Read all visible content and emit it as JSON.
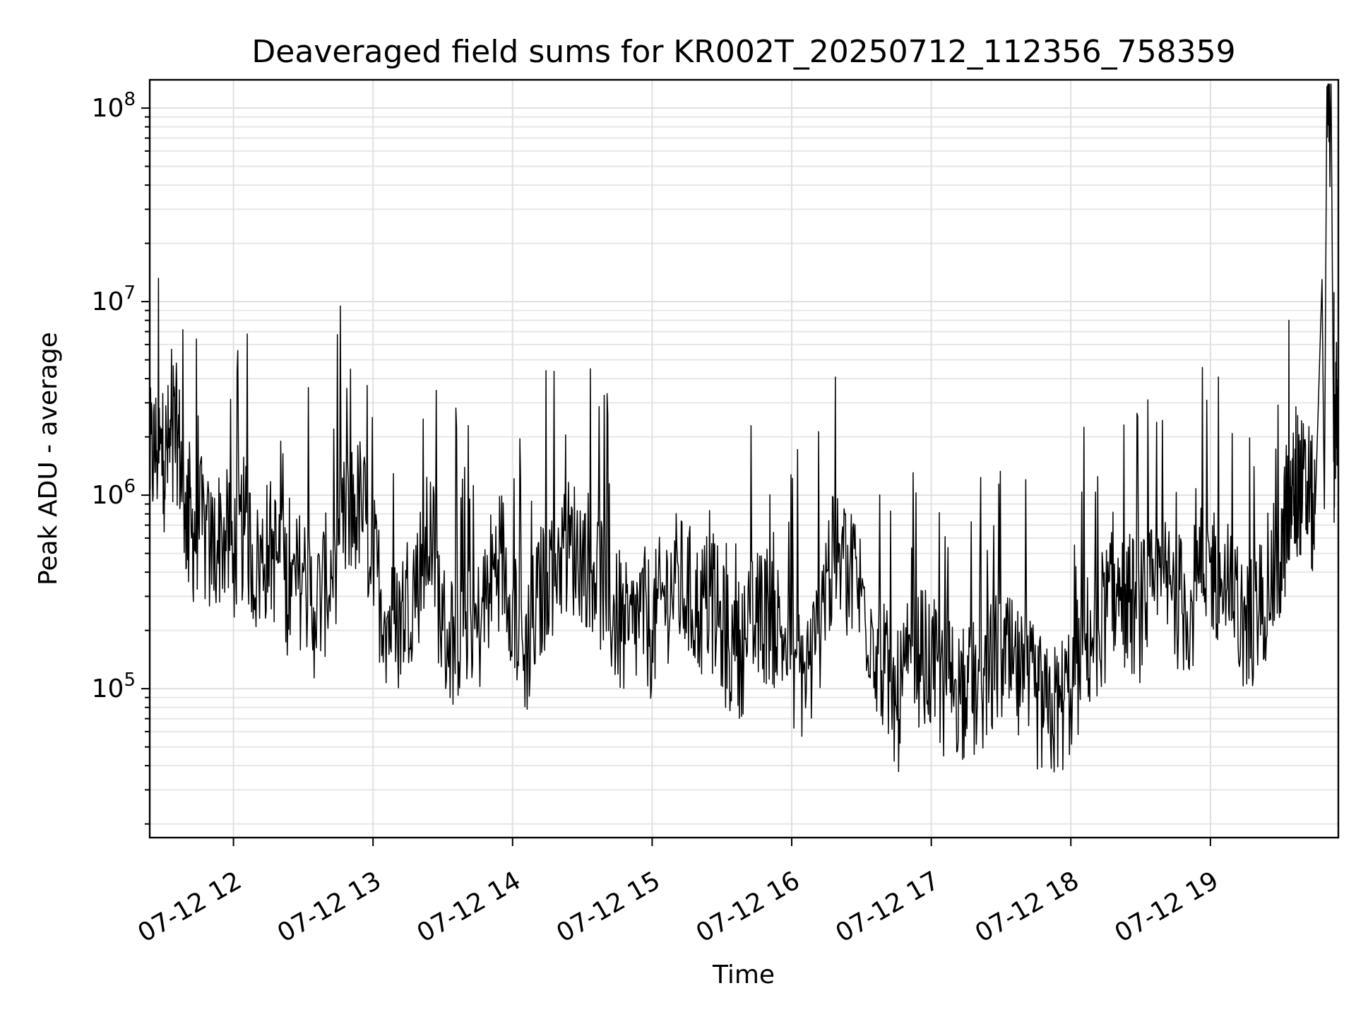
{
  "chart_data": {
    "type": "line",
    "title": "Deaveraged field sums for KR002T_20250712_112356_758359",
    "xlabel": "Time",
    "ylabel": "Peak ADU - average",
    "yscale": "log",
    "ylim": [
      17000,
      140000000
    ],
    "xlim": [
      "2025-07-12 11:24",
      "2025-07-12 19:55"
    ],
    "grid": true,
    "line_color": "#000000",
    "x_ticks": [
      {
        "label": "07-12 12",
        "time": "2025-07-12 12:00"
      },
      {
        "label": "07-12 13",
        "time": "2025-07-12 13:00"
      },
      {
        "label": "07-12 14",
        "time": "2025-07-12 14:00"
      },
      {
        "label": "07-12 15",
        "time": "2025-07-12 15:00"
      },
      {
        "label": "07-12 16",
        "time": "2025-07-12 16:00"
      },
      {
        "label": "07-12 17",
        "time": "2025-07-12 17:00"
      },
      {
        "label": "07-12 18",
        "time": "2025-07-12 18:00"
      },
      {
        "label": "07-12 19",
        "time": "2025-07-12 19:00"
      }
    ],
    "y_ticks": [
      {
        "base": "10",
        "exp": "5",
        "value": 100000
      },
      {
        "base": "10",
        "exp": "6",
        "value": 1000000
      },
      {
        "base": "10",
        "exp": "7",
        "value": 10000000
      },
      {
        "base": "10",
        "exp": "8",
        "value": 100000000
      }
    ],
    "series": [
      {
        "name": "",
        "points": [
          [
            "2025-07-12 11:24",
            1500000
          ],
          [
            "2025-07-12 11:27",
            1700000
          ],
          [
            "2025-07-12 11:30",
            1500000
          ],
          [
            "2025-07-12 11:33",
            1800000
          ],
          [
            "2025-07-12 11:36",
            2100000
          ],
          [
            "2025-07-12 11:39",
            900000
          ],
          [
            "2025-07-12 11:42",
            600000
          ],
          [
            "2025-07-12 11:45",
            750000
          ],
          [
            "2025-07-12 11:50",
            500000
          ],
          [
            "2025-07-12 11:55",
            650000
          ],
          [
            "2025-07-12 12:00",
            500000
          ],
          [
            "2025-07-12 12:05",
            700000
          ],
          [
            "2025-07-12 12:10",
            400000
          ],
          [
            "2025-07-12 12:15",
            550000
          ],
          [
            "2025-07-12 12:20",
            450000
          ],
          [
            "2025-07-12 12:25",
            300000
          ],
          [
            "2025-07-12 12:30",
            400000
          ],
          [
            "2025-07-12 12:35",
            250000
          ],
          [
            "2025-07-12 12:40",
            350000
          ],
          [
            "2025-07-12 12:45",
            550000
          ],
          [
            "2025-07-12 12:50",
            800000
          ],
          [
            "2025-07-12 12:55",
            900000
          ],
          [
            "2025-07-12 13:00",
            450000
          ],
          [
            "2025-07-12 13:05",
            250000
          ],
          [
            "2025-07-12 13:10",
            200000
          ],
          [
            "2025-07-12 13:15",
            300000
          ],
          [
            "2025-07-12 13:20",
            400000
          ],
          [
            "2025-07-12 13:25",
            650000
          ],
          [
            "2025-07-12 13:30",
            200000
          ],
          [
            "2025-07-12 13:35",
            180000
          ],
          [
            "2025-07-12 13:40",
            250000
          ],
          [
            "2025-07-12 13:45",
            200000
          ],
          [
            "2025-07-12 13:50",
            350000
          ],
          [
            "2025-07-12 13:55",
            500000
          ],
          [
            "2025-07-12 14:00",
            300000
          ],
          [
            "2025-07-12 14:05",
            150000
          ],
          [
            "2025-07-12 14:10",
            250000
          ],
          [
            "2025-07-12 14:15",
            400000
          ],
          [
            "2025-07-12 14:20",
            500000
          ],
          [
            "2025-07-12 14:25",
            550000
          ],
          [
            "2025-07-12 14:30",
            500000
          ],
          [
            "2025-07-12 14:35",
            450000
          ],
          [
            "2025-07-12 14:40",
            300000
          ],
          [
            "2025-07-12 14:45",
            220000
          ],
          [
            "2025-07-12 14:50",
            180000
          ],
          [
            "2025-07-12 14:55",
            250000
          ],
          [
            "2025-07-12 15:00",
            200000
          ],
          [
            "2025-07-12 15:05",
            300000
          ],
          [
            "2025-07-12 15:10",
            350000
          ],
          [
            "2025-07-12 15:15",
            320000
          ],
          [
            "2025-07-12 15:20",
            250000
          ],
          [
            "2025-07-12 15:25",
            300000
          ],
          [
            "2025-07-12 15:30",
            200000
          ],
          [
            "2025-07-12 15:35",
            150000
          ],
          [
            "2025-07-12 15:40",
            180000
          ],
          [
            "2025-07-12 15:45",
            220000
          ],
          [
            "2025-07-12 15:50",
            250000
          ],
          [
            "2025-07-12 15:55",
            200000
          ],
          [
            "2025-07-12 16:00",
            150000
          ],
          [
            "2025-07-12 16:05",
            120000
          ],
          [
            "2025-07-12 16:10",
            150000
          ],
          [
            "2025-07-12 16:15",
            400000
          ],
          [
            "2025-07-12 16:20",
            450000
          ],
          [
            "2025-07-12 16:25",
            420000
          ],
          [
            "2025-07-12 16:30",
            300000
          ],
          [
            "2025-07-12 16:35",
            200000
          ],
          [
            "2025-07-12 16:40",
            120000
          ],
          [
            "2025-07-12 16:45",
            80000
          ],
          [
            "2025-07-12 16:50",
            120000
          ],
          [
            "2025-07-12 16:55",
            150000
          ],
          [
            "2025-07-12 17:00",
            130000
          ],
          [
            "2025-07-12 17:05",
            100000
          ],
          [
            "2025-07-12 17:10",
            110000
          ],
          [
            "2025-07-12 17:15",
            90000
          ],
          [
            "2025-07-12 17:20",
            100000
          ],
          [
            "2025-07-12 17:25",
            120000
          ],
          [
            "2025-07-12 17:30",
            150000
          ],
          [
            "2025-07-12 17:35",
            120000
          ],
          [
            "2025-07-12 17:40",
            100000
          ],
          [
            "2025-07-12 17:45",
            90000
          ],
          [
            "2025-07-12 17:50",
            70000
          ],
          [
            "2025-07-12 17:55",
            80000
          ],
          [
            "2025-07-12 18:00",
            100000
          ],
          [
            "2025-07-12 18:05",
            150000
          ],
          [
            "2025-07-12 18:10",
            200000
          ],
          [
            "2025-07-12 18:15",
            250000
          ],
          [
            "2025-07-12 18:20",
            300000
          ],
          [
            "2025-07-12 18:25",
            280000
          ],
          [
            "2025-07-12 18:30",
            250000
          ],
          [
            "2025-07-12 18:35",
            300000
          ],
          [
            "2025-07-12 18:40",
            350000
          ],
          [
            "2025-07-12 18:45",
            300000
          ],
          [
            "2025-07-12 18:50",
            250000
          ],
          [
            "2025-07-12 18:55",
            350000
          ],
          [
            "2025-07-12 19:00",
            450000
          ],
          [
            "2025-07-12 19:05",
            350000
          ],
          [
            "2025-07-12 19:10",
            250000
          ],
          [
            "2025-07-12 19:15",
            200000
          ],
          [
            "2025-07-12 19:20",
            250000
          ],
          [
            "2025-07-12 19:25",
            350000
          ],
          [
            "2025-07-12 19:30",
            450000
          ],
          [
            "2025-07-12 19:33",
            800000
          ],
          [
            "2025-07-12 19:36",
            1000000
          ],
          [
            "2025-07-12 19:39",
            1100000
          ],
          [
            "2025-07-12 19:42",
            950000
          ],
          [
            "2025-07-12 19:45",
            800000
          ],
          [
            "2025-07-12 19:48",
            13000000
          ],
          [
            "2025-07-12 19:49",
            850000
          ],
          [
            "2025-07-12 19:50",
            90000000
          ],
          [
            "2025-07-12 19:52",
            85000000
          ],
          [
            "2025-07-12 19:53",
            1500000
          ],
          [
            "2025-07-12 19:54",
            3000000
          ],
          [
            "2025-07-12 19:55",
            2000000
          ]
        ]
      }
    ]
  }
}
